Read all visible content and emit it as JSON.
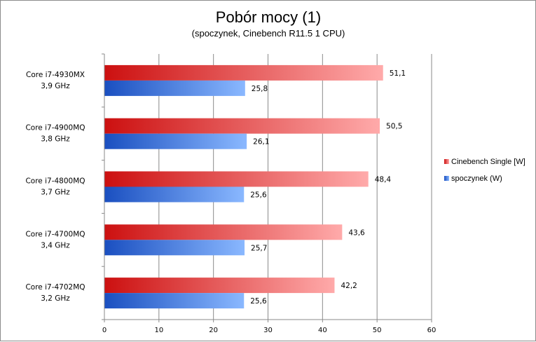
{
  "chart_data": {
    "type": "bar",
    "orientation": "horizontal",
    "title": "Pobór mocy (1)",
    "subtitle": "(spoczynek, Cinebench R11.5 1 CPU)",
    "categories": [
      [
        "Core i7-4930MX",
        "3,9 GHz"
      ],
      [
        "Core i7-4900MQ",
        "3,8 GHz"
      ],
      [
        "Core i7-4800MQ",
        "3,7 GHz"
      ],
      [
        "Core i7-4700MQ",
        "3,4 GHz"
      ],
      [
        "Core i7-4702MQ",
        "3,2 GHz"
      ]
    ],
    "series": [
      {
        "name": "Cinebench Single [W]",
        "values": [
          51.1,
          50.5,
          48.4,
          43.6,
          42.2
        ],
        "labels": [
          "51,1",
          "50,5",
          "48,4",
          "43,6",
          "42,2"
        ],
        "color_start": "#cc1010",
        "color_end": "#ffaaaa"
      },
      {
        "name": "spoczynek (W)",
        "values": [
          25.8,
          26.1,
          25.6,
          25.7,
          25.6
        ],
        "labels": [
          "25,8",
          "26,1",
          "25,6",
          "25,7",
          "25,6"
        ],
        "color_start": "#1a4fc0",
        "color_end": "#8ab8ff"
      }
    ],
    "xlim": [
      0,
      60
    ],
    "xticks": [
      0,
      10,
      20,
      30,
      40,
      50,
      60
    ],
    "xgrid": true,
    "legend_position": "right"
  }
}
